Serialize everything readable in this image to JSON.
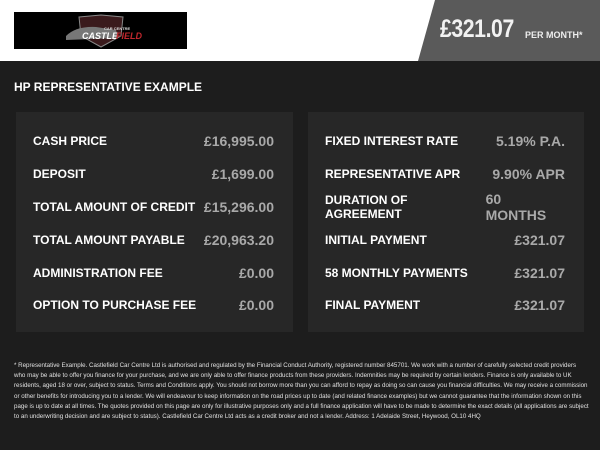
{
  "header": {
    "logo_text": "CASTLEFIELD",
    "logo_subtext": "CAR CENTRE",
    "price": "£321.07",
    "per_month": "PER MONTH*"
  },
  "section_title": "HP REPRESENTATIVE EXAMPLE",
  "left_rows": [
    {
      "label": "CASH PRICE",
      "value": "£16,995.00"
    },
    {
      "label": "DEPOSIT",
      "value": "£1,699.00"
    },
    {
      "label": "TOTAL AMOUNT OF CREDIT",
      "value": "£15,296.00"
    },
    {
      "label": "TOTAL AMOUNT PAYABLE",
      "value": "£20,963.20"
    },
    {
      "label": "ADMINISTRATION FEE",
      "value": "£0.00"
    },
    {
      "label": "OPTION TO PURCHASE FEE",
      "value": "£0.00"
    }
  ],
  "right_rows": [
    {
      "label": "FIXED INTEREST RATE",
      "value": "5.19% P.A."
    },
    {
      "label": "REPRESENTATIVE APR",
      "value": "9.90% APR"
    },
    {
      "label": "DURATION OF AGREEMENT",
      "value": "60 MONTHS"
    },
    {
      "label": "INITIAL PAYMENT",
      "value": "£321.07"
    },
    {
      "label": "58 MONTHLY PAYMENTS",
      "value": "£321.07"
    },
    {
      "label": "FINAL PAYMENT",
      "value": "£321.07"
    }
  ],
  "disclaimer": "* Representative Example. Castlefield Car Centre Ltd is authorised and regulated by the Financial Conduct Authority, registered number 845701. We work with a number of carefully selected credit providers who may be able to offer you finance for your purchase, and we are only able to offer finance products from these providers. Indemnities may be required by certain lenders. Finance is only available to UK residents, aged 18 or over, subject to status. Terms and Conditions apply. You should not borrow more than you can afford to repay as doing so can cause you financial difficulties. We may receive a commission or other benefits for introducing you to a lender. We will endeavour to keep information on the road prices up to date (and related finance examples) but we cannot guarantee that the information shown on this page is up to date at all times. The quotes provided on this page are only for illustrative purposes only and a full finance application will have to be made to determine the exact details (all applications are subject to an underwriting decision and are subject to status). Castlefield Car Centre Ltd acts as a credit broker and not a lender. Address: 1 Adelaide Street, Heywood, OL10 4HQ"
}
